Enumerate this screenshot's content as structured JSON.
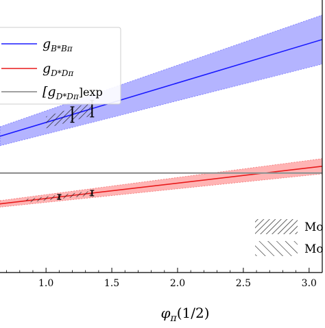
{
  "chart_data": {
    "type": "line",
    "title": "",
    "xlabel": "φπ(1/2)",
    "ylabel": "",
    "xlim": [
      0.65,
      3.1
    ],
    "ylim": [
      0.0,
      1.0
    ],
    "x_ticks": [
      1.0,
      1.5,
      2.0,
      2.5,
      3.0
    ],
    "x_tick_labels": [
      "1.0",
      "1.5",
      "2.0",
      "2.5",
      "3.0"
    ],
    "grid": false,
    "legend_position": "top-left",
    "series": [
      {
        "name": "g_{B*Bπ}",
        "legend_main": "g",
        "legend_sub": "B*Bπ",
        "color": "#1a1aff",
        "band_color": "#8c8cff",
        "x": [
          0.65,
          3.1
        ],
        "y": [
          0.5,
          0.855
        ],
        "band_halfwidth": [
          0.035,
          0.09
        ]
      },
      {
        "name": "g_{D*Dπ}",
        "legend_main": "g",
        "legend_sub": "D*Dπ",
        "color": "#e8191a",
        "band_color": "#ff8c8c",
        "x": [
          0.65,
          3.1
        ],
        "y": [
          0.252,
          0.39
        ],
        "band_halfwidth": [
          0.012,
          0.028
        ]
      },
      {
        "name": "[g_{D*Dπ}]exp",
        "legend_main": "[g",
        "legend_sub": "D*Dπ",
        "legend_suffix": "]exp",
        "color": "#808080",
        "x": [
          0.65,
          3.1
        ],
        "y": [
          0.365,
          0.365
        ],
        "band_halfwidth": [
          0.003,
          0.003
        ]
      }
    ],
    "hatched_regions": [
      {
        "series": 0,
        "x_range": [
          1.0,
          1.35
        ],
        "style": "dense"
      },
      {
        "series": 1,
        "x_range": [
          0.85,
          1.35
        ],
        "style": "dense"
      }
    ],
    "error_markers": [
      {
        "series": 0,
        "x": 1.2
      },
      {
        "series": 0,
        "x": 1.35
      },
      {
        "series": 1,
        "x": 1.1
      },
      {
        "series": 1,
        "x": 1.35
      }
    ],
    "hatch_legend": [
      {
        "label": "Mo",
        "style": "dense"
      },
      {
        "label": "Mo",
        "style": "sparse"
      }
    ]
  }
}
